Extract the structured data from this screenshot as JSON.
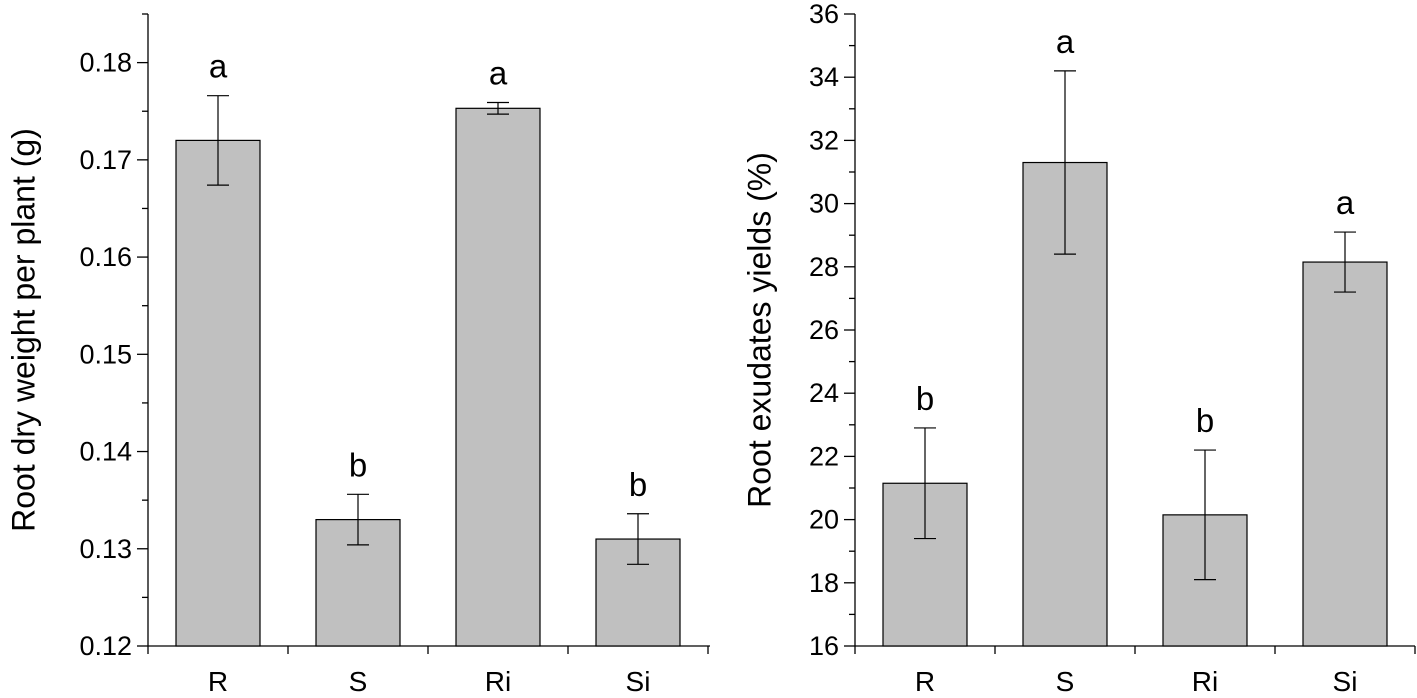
{
  "chart_data": [
    {
      "type": "bar",
      "categories": [
        "R",
        "S",
        "Ri",
        "Si"
      ],
      "values": [
        0.172,
        0.133,
        0.1753,
        0.131
      ],
      "errors": [
        0.0046,
        0.0026,
        0.0006,
        0.0026
      ],
      "significance": [
        "a",
        "b",
        "a",
        "b"
      ],
      "title": "",
      "xlabel": "",
      "ylabel": "Root dry weight per plant (g)",
      "ylim": [
        0.12,
        0.185
      ],
      "yticks": [
        0.12,
        0.13,
        0.14,
        0.15,
        0.16,
        0.17,
        0.18
      ],
      "ytick_labels": [
        "0.12",
        "0.13",
        "0.14",
        "0.15",
        "0.16",
        "0.17",
        "0.18"
      ],
      "bar_color": "#c0c0c0",
      "grid": false,
      "legend": "none"
    },
    {
      "type": "bar",
      "categories": [
        "R",
        "S",
        "Ri",
        "Si"
      ],
      "values": [
        21.15,
        31.3,
        20.15,
        28.15
      ],
      "errors": [
        1.75,
        2.9,
        2.05,
        0.95
      ],
      "significance": [
        "b",
        "a",
        "b",
        "a"
      ],
      "title": "",
      "xlabel": "",
      "ylabel": "Root exudates yields (%)",
      "ylim": [
        16,
        36
      ],
      "yticks": [
        16,
        18,
        20,
        22,
        24,
        26,
        28,
        30,
        32,
        34,
        36
      ],
      "ytick_labels": [
        "16",
        "18",
        "20",
        "22",
        "24",
        "26",
        "28",
        "30",
        "32",
        "34",
        "36"
      ],
      "bar_color": "#c0c0c0",
      "grid": false,
      "legend": "none"
    }
  ]
}
